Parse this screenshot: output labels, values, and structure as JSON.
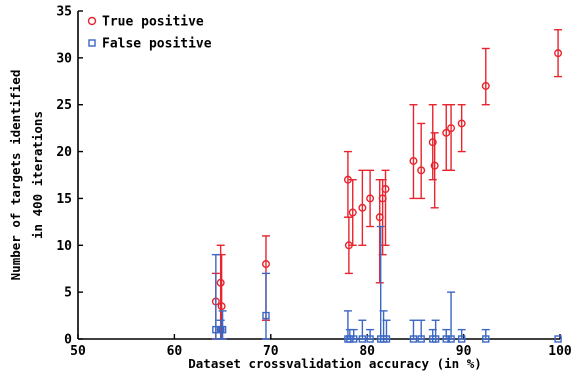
{
  "chart_data": {
    "type": "scatter",
    "title": "",
    "xlabel": "Dataset crossvalidation accuracy (in %)",
    "ylabel_lines": [
      "Number of targets identified",
      "in 400 iterations"
    ],
    "xlim": [
      50,
      100
    ],
    "ylim": [
      0,
      35
    ],
    "xticks": [
      "50",
      "60",
      "70",
      "80",
      "90",
      "100"
    ],
    "yticks": [
      "0",
      "5",
      "10",
      "15",
      "20",
      "25",
      "30",
      "35"
    ],
    "grid": false,
    "legend_position": "top-left",
    "zero_reference_line": true,
    "series": [
      {
        "name": "True positive",
        "color": "#e8242e",
        "marker": "circle",
        "points": [
          {
            "x": 64.3,
            "y": 4,
            "err_low": 0,
            "err_high": 7
          },
          {
            "x": 64.8,
            "y": 6,
            "err_low": 1,
            "err_high": 10
          },
          {
            "x": 64.9,
            "y": 3.5,
            "err_low": 0,
            "err_high": 9
          },
          {
            "x": 69.5,
            "y": 8,
            "err_low": 2,
            "err_high": 11
          },
          {
            "x": 78.0,
            "y": 17,
            "err_low": 13,
            "err_high": 20
          },
          {
            "x": 78.1,
            "y": 10,
            "err_low": 7,
            "err_high": 13
          },
          {
            "x": 78.5,
            "y": 13.5,
            "err_low": 10,
            "err_high": 17
          },
          {
            "x": 79.5,
            "y": 14,
            "err_low": 10,
            "err_high": 18
          },
          {
            "x": 80.3,
            "y": 15,
            "err_low": 12,
            "err_high": 18
          },
          {
            "x": 81.3,
            "y": 13,
            "err_low": 6,
            "err_high": 17
          },
          {
            "x": 81.6,
            "y": 15,
            "err_low": 9,
            "err_high": 17
          },
          {
            "x": 81.9,
            "y": 16,
            "err_low": 10,
            "err_high": 18
          },
          {
            "x": 84.8,
            "y": 19,
            "err_low": 15,
            "err_high": 25
          },
          {
            "x": 85.6,
            "y": 18,
            "err_low": 15,
            "err_high": 23
          },
          {
            "x": 86.8,
            "y": 21,
            "err_low": 17,
            "err_high": 25
          },
          {
            "x": 87.0,
            "y": 18.5,
            "err_low": 14,
            "err_high": 22
          },
          {
            "x": 88.2,
            "y": 22,
            "err_low": 18,
            "err_high": 25
          },
          {
            "x": 88.7,
            "y": 22.5,
            "err_low": 18,
            "err_high": 25
          },
          {
            "x": 89.8,
            "y": 23,
            "err_low": 20,
            "err_high": 25
          },
          {
            "x": 92.3,
            "y": 27,
            "err_low": 25,
            "err_high": 31
          },
          {
            "x": 99.8,
            "y": 30.5,
            "err_low": 28,
            "err_high": 33
          }
        ]
      },
      {
        "name": "False positive",
        "color": "#3b67c4",
        "marker": "square",
        "points": [
          {
            "x": 64.3,
            "y": 1,
            "err_low": 0,
            "err_high": 9
          },
          {
            "x": 64.8,
            "y": 1,
            "err_low": 0,
            "err_high": 2
          },
          {
            "x": 65.0,
            "y": 1,
            "err_low": 0,
            "err_high": 3
          },
          {
            "x": 69.5,
            "y": 2.5,
            "err_low": 0,
            "err_high": 7
          },
          {
            "x": 78.0,
            "y": 0,
            "err_low": 0,
            "err_high": 3
          },
          {
            "x": 78.2,
            "y": 0,
            "err_low": 0,
            "err_high": 1
          },
          {
            "x": 78.6,
            "y": 0,
            "err_low": 0,
            "err_high": 1
          },
          {
            "x": 79.5,
            "y": 0,
            "err_low": 0,
            "err_high": 2
          },
          {
            "x": 80.3,
            "y": 0,
            "err_low": 0,
            "err_high": 1
          },
          {
            "x": 81.4,
            "y": 0,
            "err_low": 0,
            "err_high": 12
          },
          {
            "x": 81.7,
            "y": 0,
            "err_low": 0,
            "err_high": 3
          },
          {
            "x": 82.0,
            "y": 0,
            "err_low": 0,
            "err_high": 2
          },
          {
            "x": 84.8,
            "y": 0,
            "err_low": 0,
            "err_high": 2
          },
          {
            "x": 85.6,
            "y": 0,
            "err_low": 0,
            "err_high": 2
          },
          {
            "x": 86.8,
            "y": 0,
            "err_low": 0,
            "err_high": 1
          },
          {
            "x": 87.1,
            "y": 0,
            "err_low": 0,
            "err_high": 2
          },
          {
            "x": 88.2,
            "y": 0,
            "err_low": 0,
            "err_high": 1
          },
          {
            "x": 88.7,
            "y": 0,
            "err_low": 0,
            "err_high": 5
          },
          {
            "x": 89.8,
            "y": 0,
            "err_low": 0,
            "err_high": 1
          },
          {
            "x": 92.3,
            "y": 0,
            "err_low": 0,
            "err_high": 1
          },
          {
            "x": 99.8,
            "y": 0,
            "err_low": 0,
            "err_high": 0
          }
        ]
      }
    ]
  }
}
